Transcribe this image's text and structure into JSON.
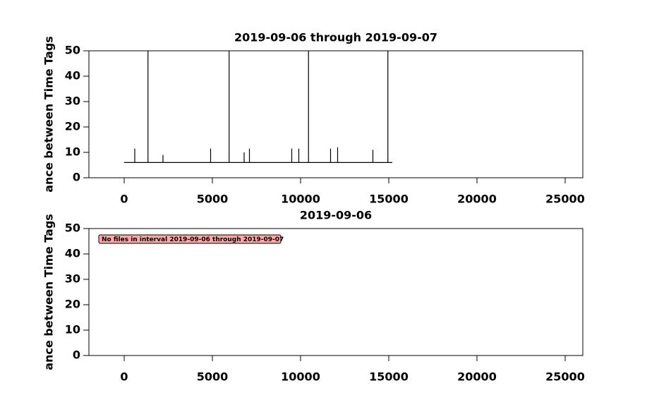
{
  "chart_data": [
    {
      "type": "line",
      "title": "2019-09-06 through 2019-09-07",
      "ylabel": "ance between Time Tags",
      "x": [
        0,
        600,
        600,
        600,
        1350,
        1350,
        1350,
        2200,
        2200,
        2200,
        4900,
        4900,
        4900,
        5950,
        5950,
        5950,
        6800,
        6800,
        6800,
        7100,
        7100,
        7100,
        9500,
        9500,
        9500,
        9900,
        9900,
        9900,
        10450,
        10450,
        10450,
        11700,
        11700,
        11700,
        12100,
        12100,
        12100,
        14100,
        14100,
        14100,
        14950,
        14950,
        14950,
        15200
      ],
      "values": [
        6,
        6,
        11.5,
        6,
        6,
        50,
        6,
        6,
        9,
        6,
        6,
        11.5,
        6,
        6,
        50,
        6,
        6,
        10,
        6,
        6,
        11.5,
        6,
        6,
        11.5,
        6,
        6,
        11.5,
        6,
        6,
        50,
        6,
        6,
        11.5,
        6,
        6,
        12,
        6,
        6,
        11,
        6,
        6,
        50,
        6,
        6
      ],
      "color": "#000000",
      "xlim": [
        -2000,
        26000
      ],
      "ylim": [
        0,
        50
      ],
      "xticks": [
        0,
        5000,
        10000,
        15000,
        20000,
        25000
      ],
      "yticks": [
        0,
        10,
        20,
        30,
        40,
        50
      ]
    },
    {
      "type": "line",
      "title": "2019-09-06",
      "ylabel": "ance between Time Tags",
      "annotation": "No files in interval 2019-09-06 through 2019-09-07",
      "annotation_color": "#ffa8a8",
      "xlim": [
        -2000,
        26000
      ],
      "ylim": [
        0,
        50
      ],
      "xticks": [
        0,
        5000,
        10000,
        15000,
        20000,
        25000
      ],
      "yticks": [
        0,
        10,
        20,
        30,
        40,
        50
      ]
    }
  ]
}
